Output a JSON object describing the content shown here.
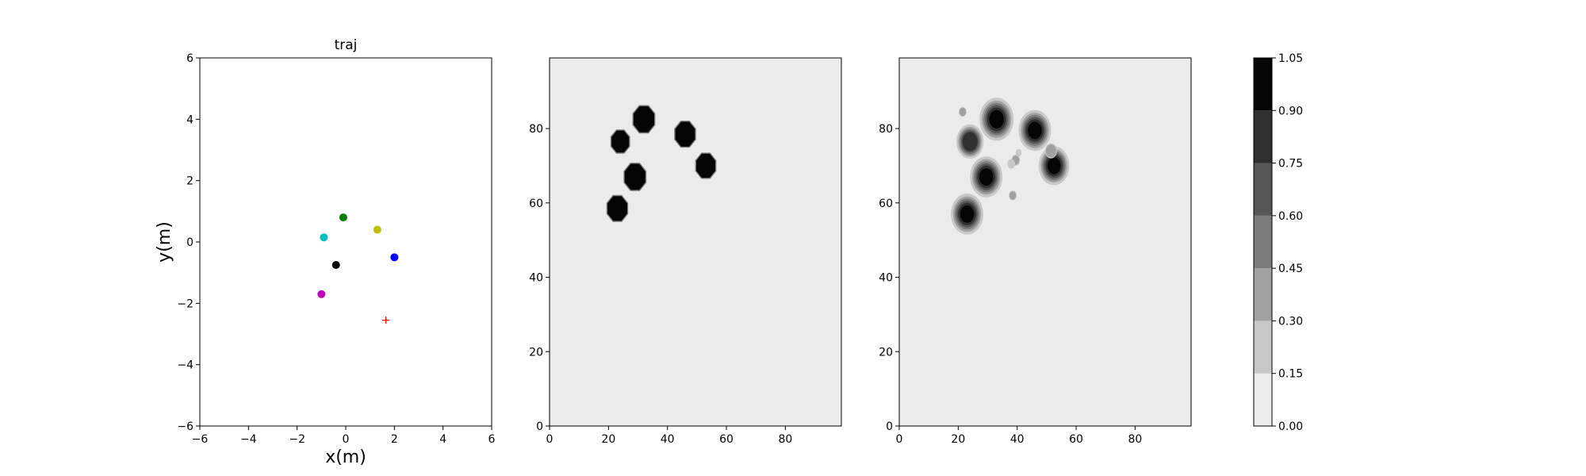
{
  "chart_data": [
    {
      "type": "scatter",
      "title": "traj",
      "xlabel": "x(m)",
      "ylabel": "y(m)",
      "xlim": [
        -6,
        6
      ],
      "ylim": [
        -6,
        6
      ],
      "xticks": [
        "−6",
        "−4",
        "−2",
        "0",
        "2",
        "4",
        "6"
      ],
      "yticks": [
        "−6",
        "−4",
        "−2",
        "0",
        "2",
        "4",
        "6"
      ],
      "grid": false,
      "points": [
        {
          "x": -0.1,
          "y": 0.8,
          "color": "#008000",
          "marker": "circle"
        },
        {
          "x": 1.3,
          "y": 0.4,
          "color": "#bfbf00",
          "marker": "circle"
        },
        {
          "x": -0.9,
          "y": 0.15,
          "color": "#00bfbf",
          "marker": "circle"
        },
        {
          "x": 2.0,
          "y": -0.5,
          "color": "#0000ff",
          "marker": "circle"
        },
        {
          "x": -0.4,
          "y": -0.75,
          "color": "#000000",
          "marker": "circle"
        },
        {
          "x": -1.0,
          "y": -1.7,
          "color": "#bf00bf",
          "marker": "circle"
        },
        {
          "x": 1.65,
          "y": -2.55,
          "color": "#ff0000",
          "marker": "plus"
        }
      ]
    },
    {
      "type": "heatmap",
      "xlim": [
        0,
        99
      ],
      "ylim": [
        0,
        99
      ],
      "xticks": [
        "0",
        "20",
        "40",
        "60",
        "80"
      ],
      "yticks": [
        "0",
        "20",
        "40",
        "60",
        "80"
      ],
      "background_level": 0.05,
      "blobs": [
        {
          "x": 32,
          "y": 82.5,
          "r": 3.8
        },
        {
          "x": 46,
          "y": 78.5,
          "r": 3.6
        },
        {
          "x": 24,
          "y": 76.5,
          "r": 3.2
        },
        {
          "x": 53,
          "y": 70,
          "r": 3.5
        },
        {
          "x": 29,
          "y": 67,
          "r": 3.8
        },
        {
          "x": 23,
          "y": 58.5,
          "r": 3.6
        }
      ]
    },
    {
      "type": "heatmap",
      "xlim": [
        0,
        99
      ],
      "ylim": [
        0,
        99
      ],
      "xticks": [
        "0",
        "20",
        "40",
        "60",
        "80"
      ],
      "yticks": [
        "0",
        "20",
        "40",
        "60",
        "80"
      ],
      "background_level": 0.05,
      "blobs": [
        {
          "x": 33,
          "y": 82.5,
          "r": 4.0,
          "peak": 1.0
        },
        {
          "x": 46,
          "y": 79.5,
          "r": 3.8,
          "peak": 0.98
        },
        {
          "x": 24,
          "y": 76.5,
          "r": 3.2,
          "peak": 0.85
        },
        {
          "x": 52.5,
          "y": 70,
          "r": 3.6,
          "peak": 1.0
        },
        {
          "x": 29.5,
          "y": 67,
          "r": 3.8,
          "peak": 1.0
        },
        {
          "x": 23,
          "y": 57,
          "r": 3.8,
          "peak": 1.0
        },
        {
          "x": 21.5,
          "y": 84.5,
          "r": 0.9,
          "peak": 0.32
        },
        {
          "x": 39.5,
          "y": 71.5,
          "r": 1.0,
          "peak": 0.3
        },
        {
          "x": 38,
          "y": 70.5,
          "r": 0.9,
          "peak": 0.28
        },
        {
          "x": 40.5,
          "y": 73.5,
          "r": 0.7,
          "peak": 0.26
        },
        {
          "x": 38.5,
          "y": 62,
          "r": 0.9,
          "peak": 0.3
        },
        {
          "x": 51.5,
          "y": 74,
          "r": 1.4,
          "peak": 0.4
        }
      ]
    },
    {
      "type": "colorbar",
      "levels": [
        0.0,
        0.15,
        0.3,
        0.45,
        0.6,
        0.75,
        0.9,
        1.05
      ],
      "tick_labels": [
        "0.00",
        "0.15",
        "0.30",
        "0.45",
        "0.60",
        "0.75",
        "0.90",
        "1.05"
      ],
      "colors": [
        "#ebebeb",
        "#c8c8c8",
        "#a1a1a1",
        "#7b7b7b",
        "#565656",
        "#303030",
        "#050505"
      ]
    }
  ]
}
